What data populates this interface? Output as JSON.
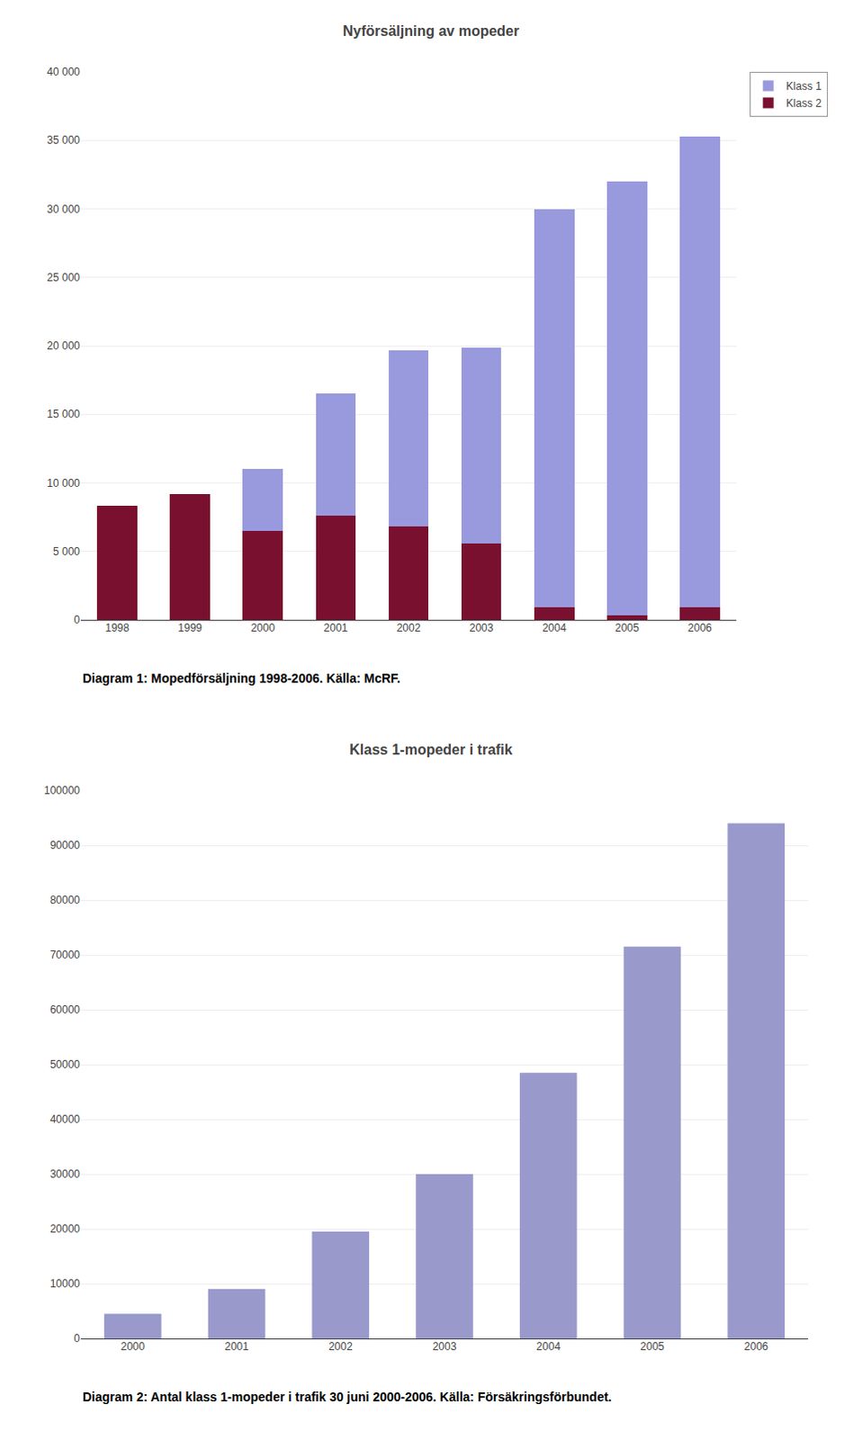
{
  "chart_data": [
    {
      "type": "bar",
      "title": "Nyförsäljning av mopeder",
      "subtitle": "Diagram 1: Mopedförsäljning 1998-2006. Källa: McRF.",
      "categories": [
        "1998",
        "1999",
        "2000",
        "2001",
        "2002",
        "2003",
        "2004",
        "2005",
        "2006"
      ],
      "series": [
        {
          "name": "Klass 2",
          "color": "#7a1030",
          "values": [
            8300,
            9200,
            6500,
            7600,
            6800,
            5600,
            900,
            300,
            900
          ]
        },
        {
          "name": "Klass 1",
          "color": "#9999dd",
          "values": [
            0,
            0,
            4500,
            8900,
            12900,
            14300,
            29100,
            31700,
            34400
          ]
        }
      ],
      "stacked": true,
      "ylim": [
        0,
        40000
      ],
      "yticks": [
        0,
        {
          "value": 5000,
          "label": "5 000"
        },
        {
          "value": 10000,
          "label": "10 000"
        },
        {
          "value": 15000,
          "label": "15 000"
        },
        {
          "value": 20000,
          "label": "20 000"
        },
        {
          "value": 25000,
          "label": "25 000"
        },
        {
          "value": 30000,
          "label": "30 000"
        },
        {
          "value": 35000,
          "label": "35 000"
        },
        {
          "value": 40000,
          "label": "40 000"
        }
      ],
      "grid": true,
      "legend": "right"
    },
    {
      "type": "bar",
      "title": "Klass 1-mopeder i trafik",
      "subtitle": "Diagram 2: Antal klass 1-mopeder i trafik 30 juni 2000-2006. Källa: Försäkringsförbundet.",
      "categories": [
        "2000",
        "2001",
        "2002",
        "2003",
        "2004",
        "2005",
        "2006"
      ],
      "values": [
        4500,
        9000,
        19500,
        30000,
        48500,
        71500,
        94000
      ],
      "color": "#9999cc",
      "ylim": [
        0,
        100000
      ],
      "yticks": [
        0,
        10000,
        20000,
        30000,
        40000,
        50000,
        60000,
        70000,
        80000,
        90000,
        100000
      ],
      "grid": true
    }
  ]
}
